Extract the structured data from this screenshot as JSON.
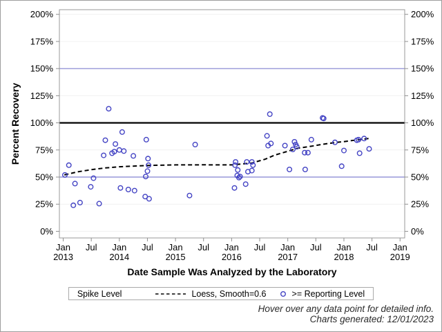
{
  "colors": {
    "marker": "#4444c4",
    "loess_line": "#000000",
    "reference_blue": "#8282d2",
    "reference_black": "#000000",
    "grid": "#f0f0f0",
    "frame": "#999999",
    "tick": "#8f8f8f",
    "tick_text": "#000000",
    "footer_text": "#2b2b2b"
  },
  "chart_data": {
    "type": "scatter",
    "xlabel": "Date Sample Was Analyzed by the Laboratory",
    "ylabel": "Percent Recovery",
    "xlim": [
      2012.932,
      2019.083
    ],
    "ylim": [
      -6.1,
      204.3
    ],
    "grid": true,
    "y_ticks": [
      {
        "v": 0,
        "label": "0%"
      },
      {
        "v": 25,
        "label": "25%"
      },
      {
        "v": 50,
        "label": "50%"
      },
      {
        "v": 75,
        "label": "75%"
      },
      {
        "v": 100,
        "label": "100%"
      },
      {
        "v": 125,
        "label": "125%"
      },
      {
        "v": 150,
        "label": "150%"
      },
      {
        "v": 175,
        "label": "175%"
      },
      {
        "v": 200,
        "label": "200%"
      }
    ],
    "x_ticks": [
      {
        "v": 2013.0,
        "lines": [
          "Jan",
          "2013"
        ]
      },
      {
        "v": 2013.5,
        "lines": [
          "Jul"
        ]
      },
      {
        "v": 2014.0,
        "lines": [
          "Jan",
          "2014"
        ]
      },
      {
        "v": 2014.5,
        "lines": [
          "Jul"
        ]
      },
      {
        "v": 2015.0,
        "lines": [
          "Jan",
          "2015"
        ]
      },
      {
        "v": 2015.5,
        "lines": [
          "Jul"
        ]
      },
      {
        "v": 2016.0,
        "lines": [
          "Jan",
          "2016"
        ]
      },
      {
        "v": 2016.5,
        "lines": [
          "Jul"
        ]
      },
      {
        "v": 2017.0,
        "lines": [
          "Jan",
          "2017"
        ]
      },
      {
        "v": 2017.5,
        "lines": [
          "Jul"
        ]
      },
      {
        "v": 2018.0,
        "lines": [
          "Jan",
          "2018"
        ]
      },
      {
        "v": 2018.5,
        "lines": [
          "Jul"
        ]
      },
      {
        "v": 2019.0,
        "lines": [
          "Jan",
          "2019"
        ]
      }
    ],
    "reference_lines": [
      {
        "y": 50,
        "color": "#8282d2",
        "width": 1.2
      },
      {
        "y": 150,
        "color": "#8282d2",
        "width": 1.2
      },
      {
        "y": 100,
        "color": "#000000",
        "width": 2.3
      }
    ],
    "series": [
      {
        "name": ">= Reporting Level",
        "marker": "open-circle",
        "points": [
          [
            2013.03,
            52
          ],
          [
            2013.1,
            61
          ],
          [
            2013.18,
            24
          ],
          [
            2013.21,
            44
          ],
          [
            2013.3,
            26.5
          ],
          [
            2013.49,
            41
          ],
          [
            2013.54,
            49
          ],
          [
            2013.64,
            25.5
          ],
          [
            2013.72,
            70
          ],
          [
            2013.75,
            84
          ],
          [
            2013.81,
            113
          ],
          [
            2013.87,
            72
          ],
          [
            2013.91,
            73.5
          ],
          [
            2013.93,
            80.5
          ],
          [
            2014.0,
            75
          ],
          [
            2014.02,
            40
          ],
          [
            2014.05,
            91.5
          ],
          [
            2014.08,
            74
          ],
          [
            2014.16,
            38.5
          ],
          [
            2014.25,
            69.5
          ],
          [
            2014.27,
            37.5
          ],
          [
            2014.46,
            32
          ],
          [
            2014.47,
            50.5
          ],
          [
            2014.48,
            84.5
          ],
          [
            2014.5,
            55.5
          ],
          [
            2014.51,
            67
          ],
          [
            2014.52,
            61
          ],
          [
            2014.53,
            30
          ],
          [
            2015.25,
            33
          ],
          [
            2015.35,
            80
          ],
          [
            2016.05,
            40
          ],
          [
            2016.06,
            61
          ],
          [
            2016.07,
            64
          ],
          [
            2016.1,
            51.5
          ],
          [
            2016.11,
            56.5
          ],
          [
            2016.13,
            49.5
          ],
          [
            2016.15,
            50.5
          ],
          [
            2016.25,
            43.5
          ],
          [
            2016.27,
            64
          ],
          [
            2016.29,
            55
          ],
          [
            2016.36,
            64
          ],
          [
            2016.36,
            56
          ],
          [
            2016.38,
            61
          ],
          [
            2016.63,
            88
          ],
          [
            2016.65,
            79
          ],
          [
            2016.68,
            108
          ],
          [
            2016.7,
            81
          ],
          [
            2016.95,
            79
          ],
          [
            2017.03,
            57
          ],
          [
            2017.09,
            75.5
          ],
          [
            2017.12,
            82.5
          ],
          [
            2017.14,
            80
          ],
          [
            2017.16,
            78
          ],
          [
            2017.3,
            72.5
          ],
          [
            2017.31,
            57
          ],
          [
            2017.36,
            72.5
          ],
          [
            2017.42,
            84.5
          ],
          [
            2017.62,
            104.5
          ],
          [
            2017.64,
            104
          ],
          [
            2017.84,
            82
          ],
          [
            2017.96,
            60
          ],
          [
            2018.0,
            74.5
          ],
          [
            2018.23,
            84
          ],
          [
            2018.26,
            84.5
          ],
          [
            2018.28,
            72
          ],
          [
            2018.36,
            85.5
          ],
          [
            2018.45,
            76
          ]
        ]
      }
    ],
    "loess": {
      "name": "Loess, Smooth=0.6",
      "style": "dashed",
      "points": [
        [
          2013.02,
          52
        ],
        [
          2013.25,
          54.8
        ],
        [
          2013.5,
          56.8
        ],
        [
          2013.75,
          58.4
        ],
        [
          2014.0,
          59.5
        ],
        [
          2014.5,
          60.7
        ],
        [
          2015.0,
          61.2
        ],
        [
          2015.5,
          61.3
        ],
        [
          2016.0,
          61.2
        ],
        [
          2016.35,
          62.8
        ],
        [
          2016.6,
          66.5
        ],
        [
          2016.77,
          70.3
        ],
        [
          2017.0,
          73.8
        ],
        [
          2017.18,
          76.6
        ],
        [
          2017.43,
          78.5
        ],
        [
          2017.62,
          80.2
        ],
        [
          2017.84,
          81.8
        ],
        [
          2018.0,
          82.7
        ],
        [
          2018.25,
          84.4
        ],
        [
          2018.46,
          85.7
        ]
      ]
    }
  },
  "legend": {
    "title": "Spike Level",
    "items": [
      {
        "swatch": "dashed-line",
        "label": "Loess, Smooth=0.6"
      },
      {
        "swatch": "open-circle",
        "label": ">= Reporting Level"
      }
    ]
  },
  "footer": {
    "line1": "Hover over any data point for detailed info.",
    "line2": "Charts generated: 12/01/2023"
  }
}
